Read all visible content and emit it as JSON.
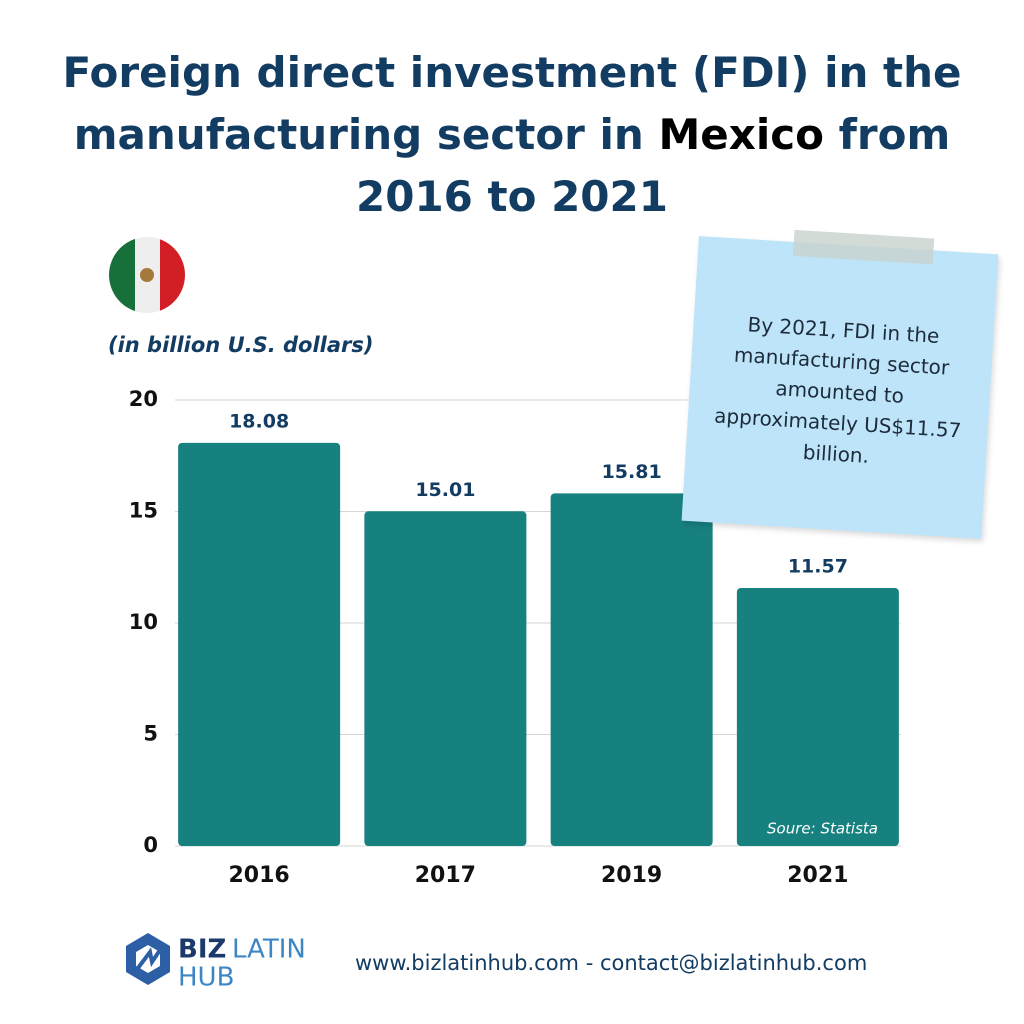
{
  "chart_data": {
    "type": "bar",
    "title_parts": [
      "Foreign direct investment (FDI) in the manufacturing sector in",
      "Mexico",
      "from 2016 to 2021"
    ],
    "subtitle": "(in billion U.S. dollars)",
    "categories": [
      "2016",
      "2017",
      "2019",
      "2021"
    ],
    "values": [
      18.08,
      15.01,
      15.81,
      11.57
    ],
    "color": "#17817f",
    "ylim": [
      0,
      20
    ],
    "yticks": [
      0,
      5,
      10,
      15,
      20
    ],
    "grid": true,
    "annotation": "By 2021, FDI in the manufacturing sector amounted to approximately US$11.57 billion.",
    "source": "Soure: Statista"
  },
  "footer": {
    "logo": [
      "BIZ",
      "LATIN",
      "HUB"
    ],
    "contact": "www.bizlatinhub.com - contact@bizlatinhub.com"
  }
}
